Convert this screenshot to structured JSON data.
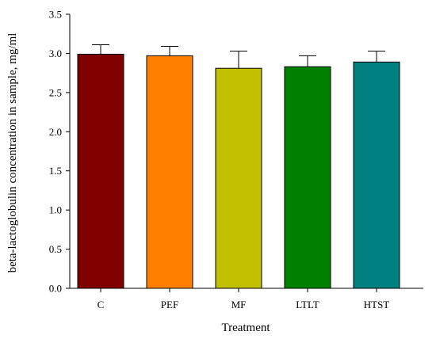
{
  "chart_data": {
    "type": "bar",
    "title": "",
    "xlabel": "Treatment",
    "ylabel": "beta-lactoglobulin concentration in sample, mg/ml",
    "ylim": [
      0,
      3.5
    ],
    "yticks": [
      "0.0",
      "0.5",
      "1.0",
      "1.5",
      "2.0",
      "2.5",
      "3.0",
      "3.5"
    ],
    "categories": [
      "C",
      "PEF",
      "MF",
      "LTLT",
      "HTST"
    ],
    "values": [
      2.99,
      2.97,
      2.81,
      2.83,
      2.89
    ],
    "errors": [
      0.12,
      0.12,
      0.22,
      0.14,
      0.14
    ],
    "colors": [
      "#800000",
      "#ff8000",
      "#c0c000",
      "#008000",
      "#008080"
    ],
    "legend": "none",
    "grid": false
  }
}
